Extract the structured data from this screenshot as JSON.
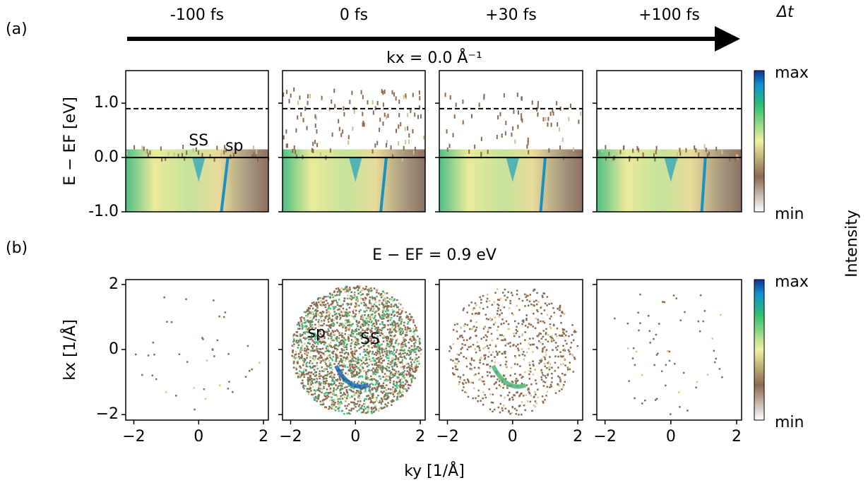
{
  "chart_data": [
    {
      "type": "heatmap",
      "panel_label": "(a)",
      "title": "kx = 0.0 Å⁻¹",
      "time_labels": [
        "-100 fs",
        "0 fs",
        "+30 fs",
        "+100 fs"
      ],
      "time_axis_label": "Δt",
      "ylabel": "E − EF [eV]",
      "xlim": [
        -2.25,
        2.15
      ],
      "ylim": [
        -1.0,
        1.6
      ],
      "yticks": [
        {
          "value": -1.0,
          "label": "-1.0"
        },
        {
          "value": 0.0,
          "label": "0.0"
        },
        {
          "value": 1.0,
          "label": "1.0"
        }
      ],
      "reference_line": 0.9,
      "annotations": [
        {
          "text": "SS",
          "panel": 0,
          "x": 0.0,
          "y": 0.3
        },
        {
          "text": "sp",
          "panel": 0,
          "x": 1.1,
          "y": 0.2
        }
      ],
      "colorbar": [
        "max",
        "min"
      ]
    },
    {
      "type": "heatmap",
      "panel_label": "(b)",
      "title": "E − EF = 0.9 eV",
      "xlabel": "ky [1/Å]",
      "ylabel": "kx [1/Å]",
      "xlim": [
        -2.25,
        2.15
      ],
      "ylim": [
        -2.17,
        2.15
      ],
      "xticks": [
        {
          "value": -2,
          "label": "−2"
        },
        0,
        2
      ],
      "yticks": [
        {
          "value": -2,
          "label": "−2"
        },
        0,
        2
      ],
      "annotations": [
        {
          "text": "sp",
          "panel": 1,
          "x": -1.2,
          "y": 0.5
        },
        {
          "text": "SS",
          "panel": 1,
          "x": 0.45,
          "y": 0.3
        }
      ],
      "colorbar": [
        "max",
        "min"
      ],
      "colorbar_label": "Intensity"
    }
  ]
}
